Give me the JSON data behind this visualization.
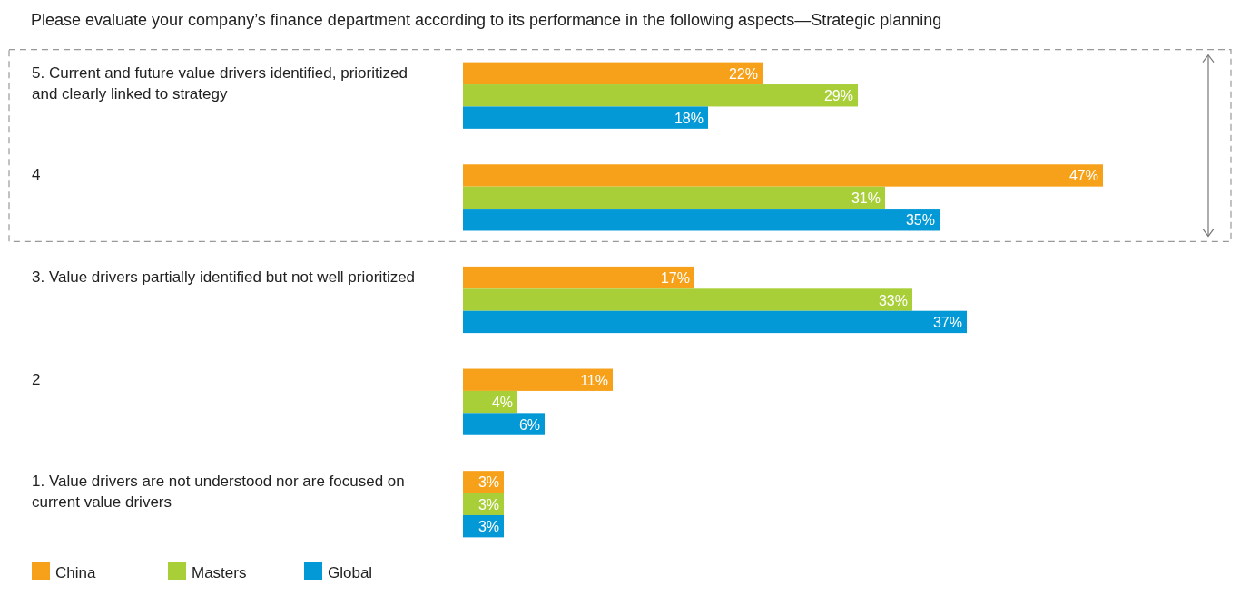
{
  "chart_data": {
    "type": "bar",
    "orientation": "horizontal",
    "title": "Please evaluate your company’s finance department according to its performance in the following aspects—Strategic planning",
    "categories": [
      "5. Current and future value drivers identified, prioritized and clearly linked to strategy",
      "4",
      "3. Value drivers partially identified but not well prioritized",
      "2",
      "1. Value drivers are not understood nor are focused on current value drivers"
    ],
    "series": [
      {
        "name": "China",
        "color": "#f7a11a",
        "values": [
          22,
          47,
          17,
          11,
          3
        ],
        "value_labels": [
          "22%",
          "47%",
          "17%",
          "11%",
          "3%"
        ]
      },
      {
        "name": "Masters",
        "color": "#a9cf38",
        "values": [
          29,
          31,
          33,
          4,
          3
        ],
        "value_labels": [
          "29%",
          "31%",
          "33%",
          "4%",
          "3%"
        ]
      },
      {
        "name": "Global",
        "color": "#0399d6",
        "values": [
          18,
          35,
          37,
          6,
          3
        ],
        "value_labels": [
          "18%",
          "35%",
          "37%",
          "6%",
          "3%"
        ]
      }
    ],
    "legend": "bottom left"
  }
}
